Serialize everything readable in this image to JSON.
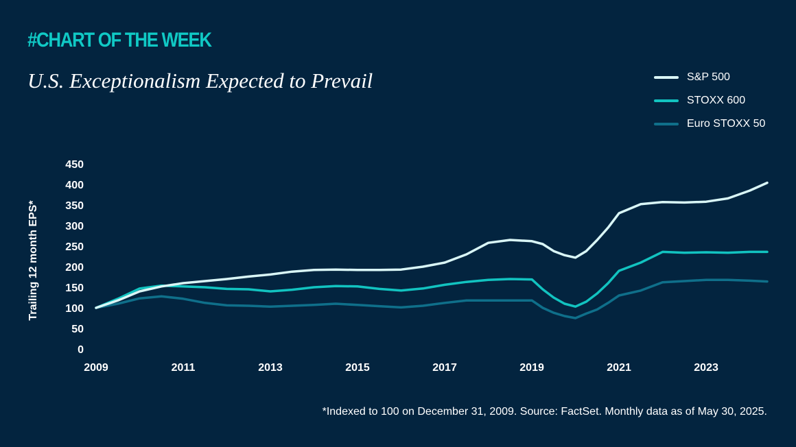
{
  "kicker": "#CHART OF THE WEEK",
  "title": "U.S. Exceptionalism Expected to Prevail",
  "footnote": "*Indexed to 100 on December 31, 2009. Source: FactSet. Monthly data as of May 30, 2025.",
  "colors": {
    "background": "#03243f",
    "kicker": "#10c9c5",
    "sp500": "#d9f6f6",
    "stoxx600": "#12c3c0",
    "eurostoxx50": "#0f6f8a"
  },
  "chart_data": {
    "type": "line",
    "ylabel": "Trailing 12 month EPS*",
    "xlabel": "",
    "ylim": [
      0,
      450
    ],
    "xlim": [
      2009,
      2024.4
    ],
    "yticks": [
      "0",
      "50",
      "100",
      "150",
      "200",
      "250",
      "300",
      "350",
      "400",
      "450"
    ],
    "xticks": [
      "2009",
      "2011",
      "2013",
      "2015",
      "2017",
      "2019",
      "2021",
      "2023"
    ],
    "legend_position": "top-right",
    "grid": false,
    "x": [
      2009.0,
      2009.5,
      2010.0,
      2010.5,
      2011.0,
      2011.5,
      2012.0,
      2012.5,
      2013.0,
      2013.5,
      2014.0,
      2014.5,
      2015.0,
      2015.5,
      2016.0,
      2016.5,
      2017.0,
      2017.5,
      2018.0,
      2018.5,
      2019.0,
      2019.25,
      2019.5,
      2019.75,
      2020.0,
      2020.25,
      2020.5,
      2020.75,
      2021.0,
      2021.5,
      2022.0,
      2022.5,
      2023.0,
      2023.5,
      2024.0,
      2024.4
    ],
    "series": [
      {
        "name": "S&P 500",
        "color": "#d9f6f6",
        "values": [
          100,
          118,
          140,
          152,
          160,
          165,
          170,
          176,
          181,
          188,
          192,
          193,
          192,
          192,
          193,
          200,
          210,
          230,
          258,
          265,
          262,
          255,
          238,
          228,
          222,
          238,
          265,
          295,
          330,
          352,
          357,
          356,
          358,
          366,
          385,
          404
        ]
      },
      {
        "name": "STOXX 600",
        "color": "#12c3c0",
        "values": [
          100,
          122,
          147,
          154,
          152,
          150,
          146,
          145,
          140,
          144,
          150,
          153,
          152,
          146,
          142,
          147,
          156,
          163,
          168,
          170,
          169,
          145,
          125,
          110,
          103,
          115,
          135,
          160,
          190,
          210,
          236,
          234,
          235,
          234,
          236,
          236
        ]
      },
      {
        "name": "Euro STOXX 50",
        "color": "#0f6f8a",
        "values": [
          100,
          110,
          123,
          128,
          122,
          112,
          106,
          105,
          103,
          105,
          107,
          110,
          107,
          104,
          101,
          105,
          112,
          118,
          118,
          118,
          118,
          100,
          88,
          80,
          75,
          86,
          96,
          112,
          130,
          142,
          162,
          165,
          168,
          168,
          166,
          164
        ]
      }
    ]
  }
}
